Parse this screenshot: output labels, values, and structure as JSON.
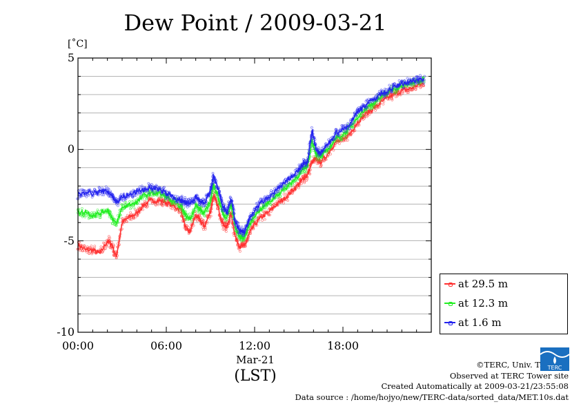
{
  "title": "Dew Point / 2009-03-21",
  "unit": "[˚C]",
  "colors": {
    "s1": "#ff3030",
    "s2": "#22ee22",
    "s3": "#2222ee",
    "grid": "#888888"
  },
  "footer": {
    "copyright": "©TERC, Univ. Tsukuba",
    "site": "Observed at TERC Tower site",
    "created": "Created Automatically at 2009-03-21/23:55:08",
    "source": "Data source : /home/hojyo/new/TERC-data/sorted_data/MET.10s.dat"
  },
  "logo": {
    "icon": "terc-logo-icon",
    "text": "TERC"
  },
  "chart_data": {
    "type": "line",
    "title": "Dew Point / 2009-03-21",
    "xlabel": "(LST)",
    "date_label": "Mar-21",
    "ylabel": "[˚C]",
    "xlim": [
      0,
      24
    ],
    "ylim": [
      -10,
      5
    ],
    "yticks": [
      "5",
      "0",
      "-5",
      "-10"
    ],
    "xticks": [
      "00:00",
      "06:00",
      "12:00",
      "18:00"
    ],
    "grid": true,
    "legend_position": "bottom-right outside",
    "x": [
      0,
      0.5,
      1,
      1.5,
      2,
      2.3,
      2.6,
      3,
      3.5,
      4,
      4.5,
      5,
      5.5,
      6,
      6.5,
      7,
      7.3,
      7.6,
      8,
      8.3,
      8.6,
      9,
      9.2,
      9.5,
      9.8,
      10.1,
      10.4,
      10.7,
      11,
      11.3,
      11.6,
      12,
      12.5,
      13,
      13.5,
      14,
      14.5,
      15,
      15.3,
      15.6,
      15.9,
      16.2,
      16.5,
      17,
      17.5,
      18,
      18.5,
      19,
      19.5,
      20,
      20.5,
      21,
      21.5,
      22,
      22.5,
      23,
      23.5
    ],
    "series": [
      {
        "name": "at 29.5 m",
        "color": "#ff3030",
        "values": [
          -5.2,
          -5.5,
          -5.5,
          -5.7,
          -5.0,
          -5.2,
          -5.9,
          -4.0,
          -3.7,
          -3.5,
          -3.0,
          -2.8,
          -2.8,
          -2.9,
          -3.1,
          -3.3,
          -4.3,
          -4.5,
          -3.6,
          -3.9,
          -4.2,
          -3.4,
          -2.5,
          -3.1,
          -4.0,
          -4.3,
          -3.5,
          -4.8,
          -5.3,
          -5.3,
          -4.7,
          -4.1,
          -3.7,
          -3.4,
          -3.0,
          -2.7,
          -2.3,
          -1.9,
          -1.6,
          -1.4,
          -0.7,
          -0.5,
          -0.7,
          -0.2,
          0.4,
          0.5,
          0.9,
          1.5,
          1.9,
          2.2,
          2.5,
          2.8,
          3.0,
          3.2,
          3.3,
          3.5,
          3.6
        ]
      },
      {
        "name": "at 12.3 m",
        "color": "#22ee22",
        "values": [
          -3.5,
          -3.4,
          -3.6,
          -3.5,
          -3.3,
          -3.7,
          -4.1,
          -3.2,
          -3.0,
          -2.9,
          -2.5,
          -2.4,
          -2.4,
          -2.6,
          -2.9,
          -3.1,
          -3.6,
          -3.8,
          -3.1,
          -3.3,
          -3.5,
          -2.8,
          -1.9,
          -2.5,
          -3.4,
          -3.8,
          -3.0,
          -4.3,
          -4.8,
          -4.8,
          -4.2,
          -3.6,
          -3.2,
          -2.9,
          -2.5,
          -2.2,
          -1.8,
          -1.4,
          -1.1,
          -0.9,
          0.5,
          -0.3,
          -0.4,
          0.0,
          0.6,
          0.8,
          1.2,
          1.8,
          2.2,
          2.5,
          2.8,
          3.1,
          3.3,
          3.5,
          3.6,
          3.7,
          3.8
        ]
      },
      {
        "name": "at 1.6 m",
        "color": "#2222ee",
        "values": [
          -2.5,
          -2.3,
          -2.4,
          -2.3,
          -2.3,
          -2.5,
          -2.9,
          -2.6,
          -2.5,
          -2.3,
          -2.2,
          -2.1,
          -2.2,
          -2.4,
          -2.6,
          -2.8,
          -2.9,
          -3.0,
          -2.6,
          -2.8,
          -3.0,
          -2.3,
          -1.5,
          -2.1,
          -3.0,
          -3.5,
          -2.7,
          -4.0,
          -4.5,
          -4.5,
          -3.9,
          -3.3,
          -2.9,
          -2.6,
          -2.2,
          -1.9,
          -1.5,
          -1.1,
          -0.8,
          -0.7,
          1.1,
          -0.1,
          -0.2,
          0.3,
          0.9,
          1.1,
          1.4,
          2.1,
          2.4,
          2.7,
          3.0,
          3.2,
          3.4,
          3.6,
          3.7,
          3.8,
          3.9
        ]
      }
    ]
  }
}
